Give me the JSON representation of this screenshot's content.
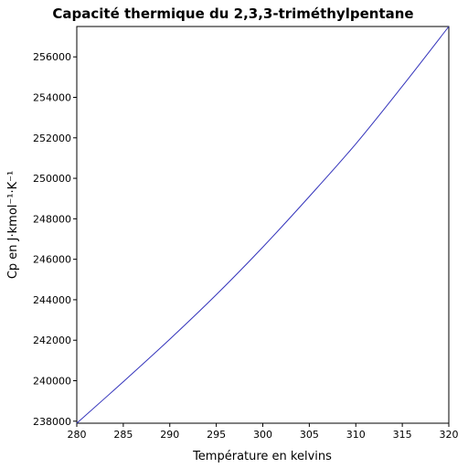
{
  "chart_data": {
    "type": "line",
    "title": "Capacité thermique du 2,3,3-triméthylpentane",
    "xlabel": "Température en kelvins",
    "ylabel": "Cp en J·kmol⁻¹·K⁻¹",
    "xlim": [
      280,
      320
    ],
    "ylim": [
      237900,
      257500
    ],
    "x_ticks": [
      280,
      285,
      290,
      295,
      300,
      305,
      310,
      315,
      320
    ],
    "x_tick_labels": [
      "280",
      "285",
      "290",
      "295",
      "300",
      "305",
      "310",
      "315",
      "320"
    ],
    "y_ticks": [
      238000,
      240000,
      242000,
      244000,
      246000,
      248000,
      250000,
      252000,
      254000,
      256000
    ],
    "y_tick_labels": [
      "238000",
      "240000",
      "242000",
      "244000",
      "246000",
      "248000",
      "250000",
      "252000",
      "254000",
      "256000"
    ],
    "grid": false,
    "series": [
      {
        "color": "#3333bb",
        "x": [
          280,
          285,
          290,
          295,
          300,
          305,
          310,
          315,
          320
        ],
        "y": [
          237900,
          239950,
          242050,
          244250,
          246600,
          249100,
          251700,
          254550,
          257500
        ]
      }
    ]
  }
}
